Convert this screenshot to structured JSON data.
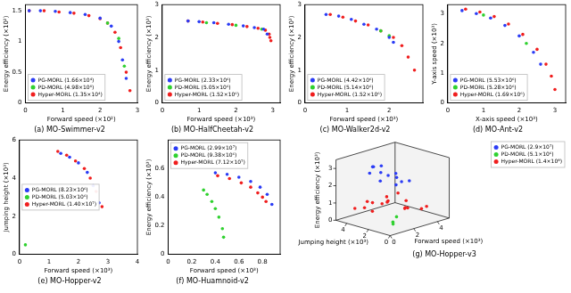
{
  "chart_data": [
    {
      "type": "scatter",
      "title": "(a) MO-Swimmer-v2",
      "x_label": "Forward speed (×10²)",
      "y_label": "Energy efficiency (×10²)",
      "xlim": [
        0,
        3
      ],
      "ylim": [
        0,
        1.6
      ],
      "xticks": [
        0,
        1,
        2,
        3
      ],
      "yticks": [
        0,
        0.5,
        1,
        1.5
      ],
      "grid": false,
      "legend": "lower left",
      "series": [
        {
          "name": "PG-MORL (1.66×10⁴)",
          "color": "#2b3cf5",
          "x": [
            0.1,
            0.4,
            0.8,
            1.2,
            1.6,
            2.0,
            2.3,
            2.5,
            2.6,
            2.7
          ],
          "values": [
            1.5,
            1.5,
            1.49,
            1.47,
            1.44,
            1.38,
            1.25,
            1.0,
            0.7,
            0.4
          ]
        },
        {
          "name": "PD-MORL (4.98×10⁴)",
          "color": "#2fd12f",
          "x": [
            2.2,
            2.5,
            2.65
          ],
          "values": [
            1.3,
            1.05,
            0.6
          ]
        },
        {
          "name": "Hyper-MORL (1.35×10⁴)",
          "color": "#f01e1e",
          "x": [
            0.1,
            0.5,
            0.9,
            1.3,
            1.7,
            2.0,
            2.2,
            2.4,
            2.55,
            2.7,
            2.8
          ],
          "values": [
            1.5,
            1.5,
            1.48,
            1.46,
            1.42,
            1.37,
            1.3,
            1.15,
            0.9,
            0.5,
            0.2
          ]
        }
      ]
    },
    {
      "type": "scatter",
      "title": "(b) MO-HalfCheetah-v2",
      "x_label": "Forward speed (×10³)",
      "y_label": "Energy efficiency (×10³)",
      "xlim": [
        0,
        3.2
      ],
      "ylim": [
        0,
        3
      ],
      "xticks": [
        0,
        1,
        2,
        3
      ],
      "yticks": [
        0,
        1,
        2,
        3
      ],
      "grid": false,
      "legend": "lower left",
      "series": [
        {
          "name": "PG-MORL (2.33×10⁶)",
          "color": "#2b3cf5",
          "x": [
            0.7,
            1.0,
            1.4,
            1.8,
            2.2,
            2.5,
            2.75,
            2.85
          ],
          "values": [
            2.5,
            2.48,
            2.45,
            2.4,
            2.35,
            2.3,
            2.25,
            2.1
          ]
        },
        {
          "name": "PD-MORL (5.05×10⁶)",
          "color": "#2fd12f",
          "x": [
            1.2,
            2.0,
            2.7
          ],
          "values": [
            2.45,
            2.37,
            2.25
          ]
        },
        {
          "name": "Hyper-MORL (1.52×10⁶)",
          "color": "#f01e1e",
          "x": [
            0.7,
            1.1,
            1.5,
            1.9,
            2.3,
            2.6,
            2.8,
            2.9,
            2.92,
            2.95
          ],
          "values": [
            2.5,
            2.47,
            2.43,
            2.39,
            2.33,
            2.28,
            2.22,
            2.1,
            2.0,
            1.9
          ]
        }
      ]
    },
    {
      "type": "scatter",
      "title": "(c) MO-Walker2d-v2",
      "x_label": "Forward speed (×10³)",
      "y_label": "Energy efficiency (×10³)",
      "xlim": [
        0,
        2.8
      ],
      "ylim": [
        0,
        3
      ],
      "xticks": [
        0,
        1,
        2
      ],
      "yticks": [
        0,
        1,
        2,
        3
      ],
      "grid": false,
      "legend": "lower left",
      "series": [
        {
          "name": "PG-MORL (4.42×10⁶)",
          "color": "#2b3cf5",
          "x": [
            0.5,
            0.8,
            1.1,
            1.4,
            1.7,
            2.0,
            2.1
          ],
          "values": [
            2.7,
            2.65,
            2.55,
            2.4,
            2.25,
            2.0,
            1.85
          ]
        },
        {
          "name": "PD-MORL (5.14×10⁶)",
          "color": "#2fd12f",
          "x": [
            1.8,
            2.0
          ],
          "values": [
            2.2,
            2.05
          ]
        },
        {
          "name": "Hyper-MORL (1.52×10⁶)",
          "color": "#f01e1e",
          "x": [
            0.6,
            0.9,
            1.2,
            1.5,
            1.8,
            2.1,
            2.3,
            2.45,
            2.6
          ],
          "values": [
            2.7,
            2.62,
            2.5,
            2.38,
            2.2,
            2.0,
            1.75,
            1.4,
            1.0
          ]
        }
      ]
    },
    {
      "type": "scatter",
      "title": "(d) MO-Ant-v2",
      "x_label": "X-axis speed (×10³)",
      "y_label": "Y-axis speed (×10³)",
      "xlim": [
        0,
        3.3
      ],
      "ylim": [
        0,
        3.3
      ],
      "xticks": [
        0,
        1,
        2,
        3
      ],
      "yticks": [
        0,
        1,
        2,
        3
      ],
      "grid": false,
      "legend": "lower left",
      "series": [
        {
          "name": "PG-MORL (5.53×10⁶)",
          "color": "#2b3cf5",
          "x": [
            0.4,
            0.8,
            1.2,
            1.6,
            2.0,
            2.4,
            2.6
          ],
          "values": [
            3.1,
            3.0,
            2.85,
            2.6,
            2.25,
            1.7,
            1.3
          ]
        },
        {
          "name": "PD-MORL (5.28×10⁶)",
          "color": "#2fd12f",
          "x": [
            1.0,
            2.2
          ],
          "values": [
            2.95,
            2.0
          ]
        },
        {
          "name": "Hyper-MORL (1.69×10⁶)",
          "color": "#f01e1e",
          "x": [
            0.5,
            0.9,
            1.3,
            1.7,
            2.1,
            2.5,
            2.75,
            2.9,
            3.0
          ],
          "values": [
            3.15,
            3.05,
            2.9,
            2.65,
            2.3,
            1.8,
            1.3,
            0.9,
            0.45
          ]
        }
      ]
    },
    {
      "type": "scatter",
      "title": "(e) MO-Hopper-v2",
      "x_label": "Forward speed (×10³)",
      "y_label": "Jumping height (×10³)",
      "xlim": [
        0,
        4
      ],
      "ylim": [
        0,
        6
      ],
      "xticks": [
        0,
        1,
        2,
        3,
        4
      ],
      "yticks": [
        0,
        2,
        4,
        6
      ],
      "grid": false,
      "legend": "center left",
      "series": [
        {
          "name": "PG-MORL (8.23×10⁶)",
          "color": "#2b3cf5",
          "x": [
            1.4,
            1.7,
            2.0,
            2.3,
            2.5,
            2.7
          ],
          "values": [
            5.3,
            5.1,
            4.8,
            4.3,
            3.6,
            2.7
          ]
        },
        {
          "name": "PD-MORL (5.03×10⁶)",
          "color": "#2fd12f",
          "x": [
            0.2
          ],
          "values": [
            0.5
          ]
        },
        {
          "name": "Hyper-MORL (1.40×10⁷)",
          "color": "#f01e1e",
          "x": [
            1.3,
            1.6,
            1.9,
            2.2,
            2.4,
            2.6,
            2.8
          ],
          "values": [
            5.4,
            5.2,
            4.9,
            4.5,
            4.0,
            3.3,
            2.5
          ]
        }
      ]
    },
    {
      "type": "scatter",
      "title": "(f) MO-Huamnoid-v2",
      "x_label": "Forward speed (×10³)",
      "y_label": "Energy efficiency (×10³)",
      "xlim": [
        0,
        0.95
      ],
      "ylim": [
        0,
        0.8
      ],
      "xticks": [
        0,
        0.2,
        0.4,
        0.6,
        0.8
      ],
      "yticks": [
        0,
        0.2,
        0.4,
        0.6
      ],
      "grid": false,
      "legend": "upper left",
      "series": [
        {
          "name": "PG-MORL (2.99×10⁷)",
          "color": "#2b3cf5",
          "x": [
            0.4,
            0.5,
            0.6,
            0.7,
            0.78,
            0.84,
            0.88
          ],
          "values": [
            0.57,
            0.56,
            0.54,
            0.51,
            0.47,
            0.42,
            0.35
          ]
        },
        {
          "name": "PD-MORL (9.38×10⁶)",
          "color": "#2fd12f",
          "x": [
            0.3,
            0.33,
            0.37,
            0.4,
            0.43,
            0.46,
            0.47
          ],
          "values": [
            0.45,
            0.42,
            0.37,
            0.32,
            0.26,
            0.18,
            0.12
          ]
        },
        {
          "name": "Hyper-MORL (7.12×10⁷)",
          "color": "#f01e1e",
          "x": [
            0.42,
            0.52,
            0.62,
            0.7,
            0.76,
            0.8,
            0.83
          ],
          "values": [
            0.55,
            0.53,
            0.5,
            0.47,
            0.43,
            0.4,
            0.37
          ]
        }
      ]
    },
    {
      "type": "scatter3d",
      "title": "(g) MO-Hopper-v3",
      "x_label": "Forward speed (×10³)",
      "y_label": "Jumping height (×10³)",
      "z_label": "Energy efficiency (×10³)",
      "xlim": [
        0,
        5
      ],
      "ylim": [
        0,
        5
      ],
      "zlim": [
        0,
        3.5
      ],
      "xticks": [
        0,
        2,
        4
      ],
      "yticks": [
        0,
        2,
        4
      ],
      "zticks": [
        0,
        1,
        2,
        3
      ],
      "grid": false,
      "legend": "upper right",
      "series": [
        {
          "name": "PG-MORL (2.9×10⁷)",
          "color": "#2b3cf5",
          "x": [
            1.0,
            1.5,
            2.0,
            2.5,
            3.0,
            1.2,
            1.8,
            2.4,
            2.8,
            1.6,
            2.2,
            2.0
          ],
          "y": [
            2.0,
            2.5,
            3.0,
            2.2,
            1.5,
            3.2,
            3.5,
            2.8,
            2.0,
            1.2,
            1.8,
            3.8
          ],
          "z": [
            2.6,
            2.9,
            3.1,
            2.7,
            2.3,
            2.8,
            3.0,
            2.5,
            2.2,
            2.4,
            2.6,
            2.9
          ]
        },
        {
          "name": "PD-MORL (5.1×10⁶)",
          "color": "#2fd12f",
          "x": [
            0.6,
            0.8,
            1.0
          ],
          "y": [
            0.4,
            0.6,
            0.5
          ],
          "z": [
            0.6,
            0.4,
            0.8
          ]
        },
        {
          "name": "Hyper-MORL (1.4×10⁸)",
          "color": "#f01e1e",
          "x": [
            0.5,
            1.0,
            1.5,
            2.0,
            2.5,
            3.0,
            3.5,
            4.0,
            1.2,
            2.2,
            3.2,
            0.8,
            1.8,
            2.8,
            3.8,
            2.5
          ],
          "y": [
            3.8,
            3.2,
            4.0,
            2.5,
            3.0,
            1.8,
            2.2,
            1.0,
            1.5,
            1.0,
            0.6,
            2.5,
            3.6,
            3.8,
            2.8,
            2.0
          ],
          "z": [
            0.8,
            1.2,
            0.6,
            1.4,
            0.9,
            1.1,
            0.5,
            0.7,
            1.5,
            1.0,
            0.8,
            1.3,
            0.4,
            0.6,
            0.3,
            1.6
          ]
        }
      ]
    }
  ]
}
